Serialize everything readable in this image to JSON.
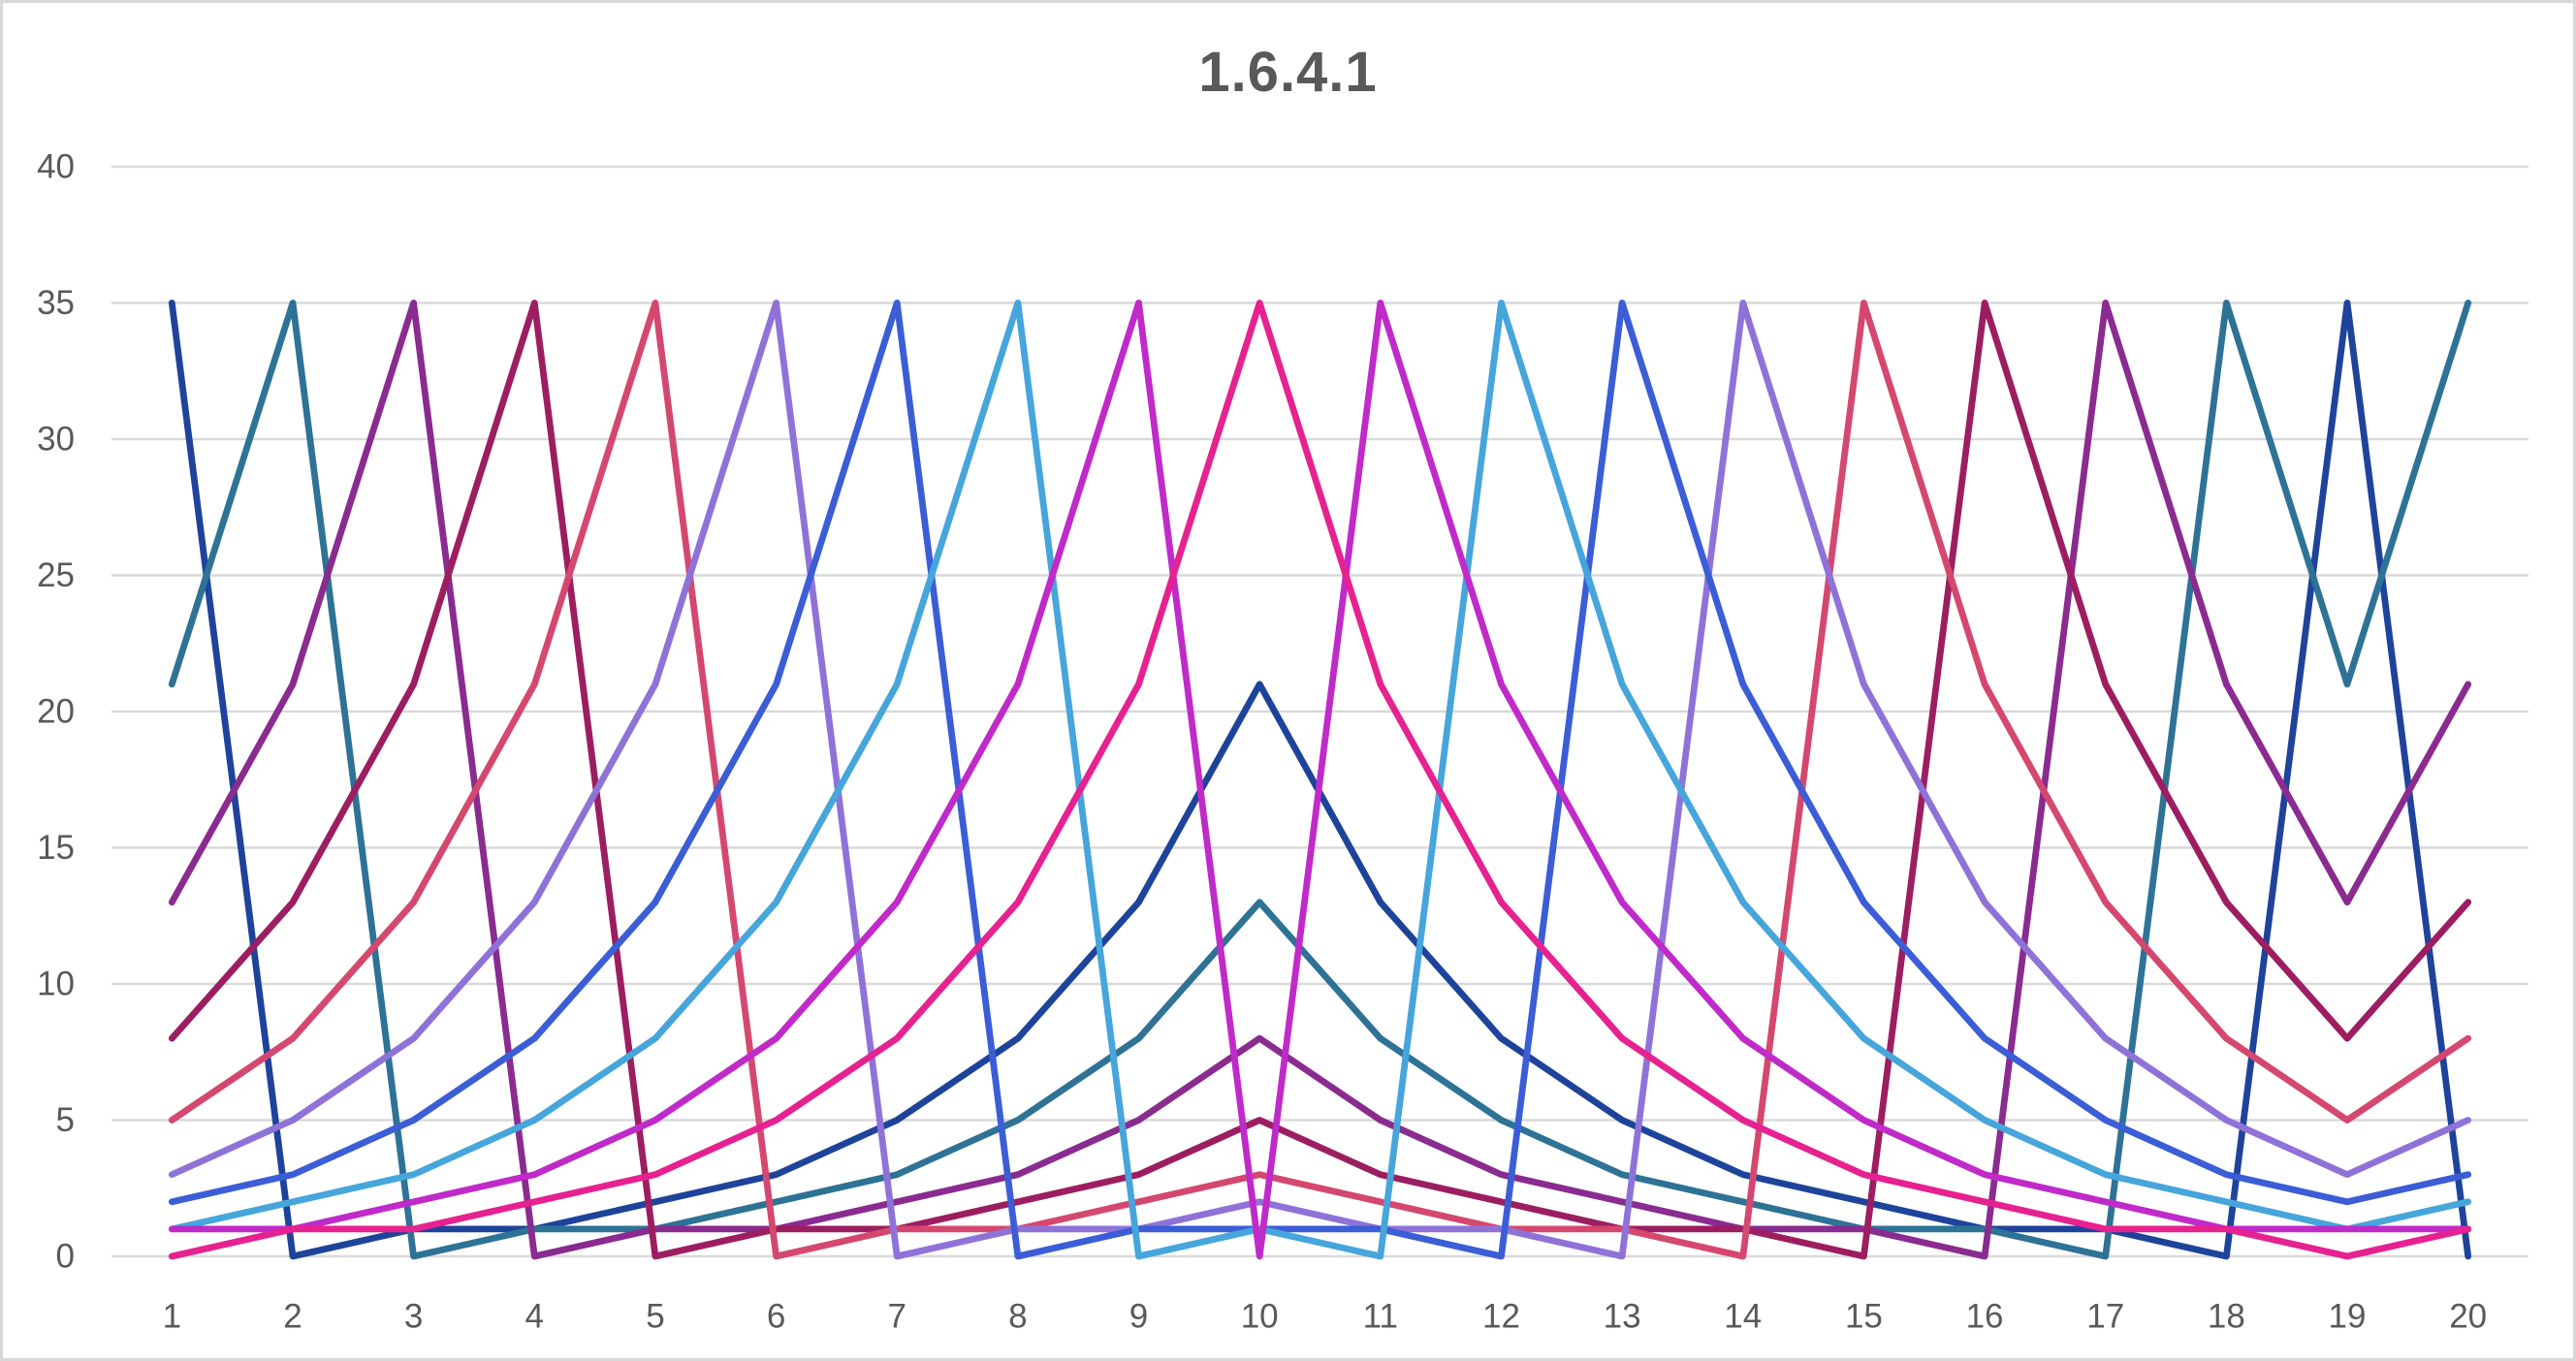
{
  "chart": {
    "title": "1.6.4.1",
    "title_color": "#595959",
    "background_color": "#FFFFFF",
    "frame_border_color": "#D8D8D8",
    "gridline_color": "#D9D9D9",
    "tick_label_color": "#595959"
  },
  "chart_data": {
    "type": "line",
    "title": "1.6.4.1",
    "xlabel": "",
    "ylabel": "",
    "categories": [
      1,
      2,
      3,
      4,
      5,
      6,
      7,
      8,
      9,
      10,
      11,
      12,
      13,
      14,
      15,
      16,
      17,
      18,
      19,
      20
    ],
    "ylim": [
      0,
      40
    ],
    "yticks": [
      0,
      5,
      10,
      15,
      20,
      25,
      30,
      35,
      40
    ],
    "grid": true,
    "legend_position": "none",
    "series": [
      {
        "color": "#1E439A",
        "values": [
          35,
          0,
          1,
          1,
          2,
          3,
          5,
          8,
          13,
          21,
          13,
          8,
          5,
          3,
          2,
          1,
          1,
          0,
          35,
          0
        ]
      },
      {
        "color": "#2E7296",
        "values": [
          21,
          35,
          0,
          1,
          1,
          2,
          3,
          5,
          8,
          13,
          8,
          5,
          3,
          2,
          1,
          1,
          0,
          35,
          21,
          35
        ]
      },
      {
        "color": "#8A2B90",
        "values": [
          13,
          21,
          35,
          0,
          1,
          1,
          2,
          3,
          5,
          8,
          5,
          3,
          2,
          1,
          1,
          0,
          35,
          21,
          13,
          21
        ]
      },
      {
        "color": "#9C1E61",
        "values": [
          8,
          13,
          21,
          35,
          0,
          1,
          1,
          2,
          3,
          5,
          3,
          2,
          1,
          1,
          0,
          35,
          21,
          13,
          8,
          13
        ]
      },
      {
        "color": "#D4486F",
        "values": [
          5,
          8,
          13,
          21,
          35,
          0,
          1,
          1,
          2,
          3,
          2,
          1,
          1,
          0,
          35,
          21,
          13,
          8,
          5,
          8
        ]
      },
      {
        "color": "#8F72D8",
        "values": [
          3,
          5,
          8,
          13,
          21,
          35,
          0,
          1,
          1,
          2,
          1,
          1,
          0,
          35,
          21,
          13,
          8,
          5,
          3,
          5
        ]
      },
      {
        "color": "#3B5DD6",
        "values": [
          2,
          3,
          5,
          8,
          13,
          21,
          35,
          0,
          1,
          1,
          1,
          0,
          35,
          21,
          13,
          8,
          5,
          3,
          2,
          3
        ]
      },
      {
        "color": "#46A5DB",
        "values": [
          1,
          2,
          3,
          5,
          8,
          13,
          21,
          35,
          0,
          1,
          0,
          35,
          21,
          13,
          8,
          5,
          3,
          2,
          1,
          2
        ]
      },
      {
        "color": "#C02AC9",
        "values": [
          1,
          1,
          2,
          3,
          5,
          8,
          13,
          21,
          35,
          0,
          35,
          21,
          13,
          8,
          5,
          3,
          2,
          1,
          1,
          1
        ]
      },
      {
        "color": "#E62190",
        "values": [
          0,
          1,
          1,
          2,
          3,
          5,
          8,
          13,
          21,
          35,
          21,
          13,
          8,
          5,
          3,
          2,
          1,
          1,
          0,
          1
        ]
      }
    ]
  }
}
